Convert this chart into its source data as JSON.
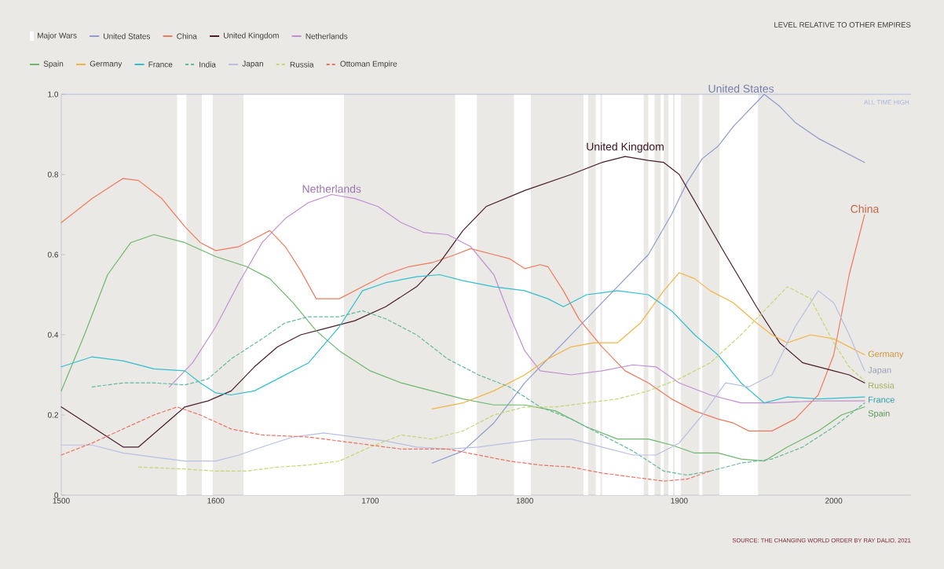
{
  "chart_data": {
    "type": "line",
    "xlim": [
      1500,
      2050
    ],
    "ylim": [
      0,
      1
    ],
    "xticks": [
      1500,
      1600,
      1700,
      1800,
      1900,
      2000
    ],
    "yticks": [
      {
        "value": 0,
        "label": "0"
      },
      0.2,
      0.4,
      0.6,
      0.8,
      {
        "value": 1,
        "label": "1.0"
      }
    ],
    "legend": "top left",
    "grid": false,
    "marker": "none",
    "bands": [
      {
        "axis": "x",
        "from": 1575,
        "to": 1581,
        "label": "Major Wars",
        "color": "#ffffff"
      },
      {
        "axis": "x",
        "from": 1591,
        "to": 1598,
        "color": "#ffffff"
      },
      {
        "axis": "x",
        "from": 1618,
        "to": 1683,
        "color": "#ffffff"
      },
      {
        "axis": "x",
        "from": 1755,
        "to": 1769,
        "color": "#ffffff"
      },
      {
        "axis": "x",
        "from": 1793,
        "to": 1804,
        "color": "#ffffff"
      },
      {
        "axis": "x",
        "from": 1838,
        "to": 1841,
        "color": "#ffffff"
      },
      {
        "axis": "x",
        "from": 1846,
        "to": 1849,
        "color": "#ffffff"
      },
      {
        "axis": "x",
        "from": 1850,
        "to": 1877,
        "color": "#ffffff"
      },
      {
        "axis": "x",
        "from": 1880,
        "to": 1884,
        "color": "#ffffff"
      },
      {
        "axis": "x",
        "from": 1888,
        "to": 1890,
        "color": "#ffffff"
      },
      {
        "axis": "x",
        "from": 1893,
        "to": 1896,
        "color": "#ffffff"
      },
      {
        "axis": "x",
        "from": 1897,
        "to": 1901,
        "color": "#ffffff"
      },
      {
        "axis": "x",
        "from": 1913,
        "to": 1915,
        "color": "#ffffff"
      },
      {
        "axis": "x",
        "from": 1926,
        "to": 1951,
        "color": "#ffffff"
      }
    ],
    "ref_lines": [
      {
        "axis": "y",
        "value": 1,
        "label": "ALL TIME HIGH",
        "color": "#aab3d8"
      }
    ],
    "series": [
      {
        "name": "United States",
        "color": "#8e9bcf",
        "x": [
          1740,
          1760,
          1780,
          1800,
          1820,
          1840,
          1860,
          1880,
          1895,
          1905,
          1915,
          1925,
          1935,
          1945,
          1955,
          1965,
          1975,
          1990,
          2005,
          2020
        ],
        "values": [
          0.08,
          0.11,
          0.18,
          0.28,
          0.36,
          0.44,
          0.52,
          0.6,
          0.7,
          0.78,
          0.84,
          0.87,
          0.92,
          0.96,
          1.0,
          0.97,
          0.93,
          0.89,
          0.86,
          0.83
        ]
      },
      {
        "name": "China",
        "color": "#ef7a5c",
        "x": [
          1500,
          1520,
          1540,
          1550,
          1565,
          1580,
          1590,
          1600,
          1615,
          1630,
          1635,
          1645,
          1655,
          1665,
          1680,
          1695,
          1710,
          1725,
          1740,
          1755,
          1765,
          1780,
          1790,
          1800,
          1810,
          1815,
          1825,
          1835,
          1850,
          1865,
          1880,
          1895,
          1910,
          1925,
          1935,
          1945,
          1960,
          1975,
          1990,
          2000,
          2010,
          2020
        ],
        "values": [
          0.68,
          0.74,
          0.79,
          0.785,
          0.74,
          0.67,
          0.63,
          0.61,
          0.62,
          0.65,
          0.66,
          0.62,
          0.56,
          0.49,
          0.49,
          0.52,
          0.55,
          0.57,
          0.58,
          0.6,
          0.615,
          0.6,
          0.59,
          0.565,
          0.575,
          0.57,
          0.51,
          0.44,
          0.37,
          0.31,
          0.28,
          0.24,
          0.21,
          0.19,
          0.18,
          0.16,
          0.16,
          0.19,
          0.25,
          0.35,
          0.55,
          0.7
        ]
      },
      {
        "name": "United Kingdom",
        "color": "#4a1c2c",
        "x": [
          1500,
          1520,
          1540,
          1550,
          1565,
          1580,
          1595,
          1610,
          1625,
          1640,
          1655,
          1670,
          1690,
          1710,
          1730,
          1745,
          1760,
          1775,
          1800,
          1830,
          1850,
          1865,
          1880,
          1890,
          1900,
          1915,
          1930,
          1950,
          1965,
          1980,
          2000,
          2010,
          2020
        ],
        "values": [
          0.22,
          0.17,
          0.12,
          0.12,
          0.17,
          0.22,
          0.235,
          0.26,
          0.32,
          0.37,
          0.4,
          0.415,
          0.435,
          0.47,
          0.52,
          0.58,
          0.66,
          0.72,
          0.76,
          0.8,
          0.83,
          0.845,
          0.835,
          0.83,
          0.8,
          0.7,
          0.6,
          0.47,
          0.38,
          0.33,
          0.31,
          0.3,
          0.28
        ]
      },
      {
        "name": "Netherlands",
        "color": "#c08fd2",
        "x": [
          1570,
          1585,
          1600,
          1615,
          1630,
          1645,
          1660,
          1675,
          1690,
          1705,
          1720,
          1735,
          1750,
          1765,
          1780,
          1790,
          1800,
          1810,
          1830,
          1850,
          1870,
          1885,
          1900,
          1920,
          1940,
          1960,
          1990,
          2020
        ],
        "values": [
          0.27,
          0.33,
          0.42,
          0.53,
          0.63,
          0.69,
          0.73,
          0.75,
          0.74,
          0.72,
          0.68,
          0.655,
          0.65,
          0.62,
          0.55,
          0.45,
          0.36,
          0.31,
          0.3,
          0.31,
          0.325,
          0.32,
          0.28,
          0.25,
          0.23,
          0.23,
          0.235,
          0.235
        ]
      },
      {
        "name": "Spain",
        "color": "#6cb86c",
        "x": [
          1500,
          1515,
          1530,
          1545,
          1560,
          1580,
          1600,
          1620,
          1635,
          1650,
          1665,
          1680,
          1700,
          1720,
          1740,
          1760,
          1780,
          1800,
          1820,
          1840,
          1860,
          1880,
          1895,
          1910,
          1925,
          1940,
          1955,
          1970,
          1990,
          2005,
          2020
        ],
        "values": [
          0.26,
          0.4,
          0.55,
          0.63,
          0.65,
          0.63,
          0.595,
          0.57,
          0.54,
          0.48,
          0.41,
          0.36,
          0.31,
          0.28,
          0.26,
          0.24,
          0.225,
          0.225,
          0.21,
          0.17,
          0.14,
          0.14,
          0.125,
          0.105,
          0.105,
          0.09,
          0.085,
          0.12,
          0.16,
          0.2,
          0.22
        ]
      },
      {
        "name": "Germany",
        "color": "#f3b443",
        "x": [
          1740,
          1760,
          1780,
          1800,
          1815,
          1830,
          1845,
          1860,
          1875,
          1890,
          1900,
          1910,
          1920,
          1935,
          1950,
          1960,
          1970,
          1985,
          2000,
          2020
        ],
        "values": [
          0.215,
          0.23,
          0.26,
          0.3,
          0.34,
          0.37,
          0.38,
          0.38,
          0.43,
          0.51,
          0.555,
          0.54,
          0.51,
          0.48,
          0.43,
          0.4,
          0.38,
          0.4,
          0.39,
          0.35
        ]
      },
      {
        "name": "France",
        "color": "#30bfd0",
        "x": [
          1500,
          1520,
          1540,
          1560,
          1580,
          1590,
          1600,
          1610,
          1625,
          1640,
          1660,
          1680,
          1695,
          1710,
          1730,
          1745,
          1760,
          1780,
          1800,
          1815,
          1825,
          1840,
          1860,
          1880,
          1895,
          1910,
          1925,
          1940,
          1955,
          1970,
          1990,
          2020
        ],
        "values": [
          0.32,
          0.345,
          0.335,
          0.315,
          0.31,
          0.28,
          0.255,
          0.25,
          0.26,
          0.29,
          0.33,
          0.42,
          0.51,
          0.53,
          0.545,
          0.55,
          0.535,
          0.52,
          0.51,
          0.49,
          0.47,
          0.5,
          0.51,
          0.5,
          0.46,
          0.4,
          0.35,
          0.28,
          0.23,
          0.245,
          0.24,
          0.245
        ]
      },
      {
        "name": "India",
        "color": "#62b8a2",
        "line_style": "dashed",
        "x": [
          1520,
          1540,
          1560,
          1580,
          1595,
          1610,
          1630,
          1645,
          1660,
          1680,
          1695,
          1710,
          1730,
          1750,
          1770,
          1790,
          1810,
          1830,
          1850,
          1870,
          1890,
          1905,
          1920,
          1940,
          1960,
          1980,
          2000,
          2020
        ],
        "values": [
          0.27,
          0.28,
          0.28,
          0.275,
          0.29,
          0.34,
          0.39,
          0.43,
          0.445,
          0.445,
          0.46,
          0.44,
          0.4,
          0.34,
          0.3,
          0.27,
          0.22,
          0.19,
          0.15,
          0.11,
          0.06,
          0.05,
          0.06,
          0.08,
          0.09,
          0.12,
          0.17,
          0.23
        ]
      },
      {
        "name": "Japan",
        "color": "#b8bfe2",
        "x": [
          1500,
          1520,
          1540,
          1560,
          1580,
          1600,
          1615,
          1630,
          1650,
          1670,
          1690,
          1710,
          1730,
          1750,
          1770,
          1790,
          1810,
          1830,
          1850,
          1870,
          1885,
          1900,
          1915,
          1930,
          1945,
          1960,
          1975,
          1990,
          2000,
          2010,
          2020
        ],
        "values": [
          0.125,
          0.125,
          0.105,
          0.095,
          0.085,
          0.085,
          0.1,
          0.12,
          0.145,
          0.155,
          0.145,
          0.135,
          0.12,
          0.115,
          0.12,
          0.13,
          0.14,
          0.14,
          0.12,
          0.1,
          0.1,
          0.13,
          0.2,
          0.28,
          0.27,
          0.3,
          0.42,
          0.51,
          0.48,
          0.4,
          0.31
        ]
      },
      {
        "name": "Russia",
        "color": "#c6d672",
        "line_style": "dashed",
        "x": [
          1550,
          1580,
          1600,
          1620,
          1640,
          1660,
          1680,
          1700,
          1720,
          1740,
          1760,
          1780,
          1800,
          1820,
          1840,
          1860,
          1880,
          1900,
          1920,
          1940,
          1955,
          1970,
          1985,
          2000,
          2010,
          2020
        ],
        "values": [
          0.07,
          0.065,
          0.06,
          0.06,
          0.07,
          0.075,
          0.085,
          0.12,
          0.15,
          0.14,
          0.16,
          0.2,
          0.22,
          0.22,
          0.23,
          0.24,
          0.26,
          0.29,
          0.33,
          0.4,
          0.46,
          0.52,
          0.49,
          0.38,
          0.32,
          0.285
        ]
      },
      {
        "name": "Ottoman Empire",
        "color": "#ef6f5e",
        "line_style": "dashed",
        "x": [
          1500,
          1520,
          1540,
          1560,
          1575,
          1590,
          1610,
          1630,
          1660,
          1690,
          1720,
          1750,
          1770,
          1790,
          1810,
          1830,
          1850,
          1870,
          1890,
          1905,
          1920
        ],
        "values": [
          0.1,
          0.13,
          0.165,
          0.2,
          0.22,
          0.2,
          0.165,
          0.15,
          0.145,
          0.13,
          0.115,
          0.115,
          0.1,
          0.085,
          0.075,
          0.07,
          0.055,
          0.045,
          0.035,
          0.04,
          0.06
        ]
      }
    ],
    "annotations": [
      {
        "text": "United States",
        "x": 1940,
        "y": 1.0
      },
      {
        "text": "China",
        "x": 2020,
        "y": 0.7
      },
      {
        "text": "United Kingdom",
        "x": 1865,
        "y": 0.85
      },
      {
        "text": "Netherlands",
        "x": 1675,
        "y": 0.75
      },
      {
        "text": "Germany",
        "x": 2020,
        "y": 0.35
      },
      {
        "text": "Japan",
        "x": 2020,
        "y": 0.31
      },
      {
        "text": "Russia",
        "x": 2020,
        "y": 0.285
      },
      {
        "text": "France",
        "x": 2020,
        "y": 0.245
      },
      {
        "text": "Spain",
        "x": 2020,
        "y": 0.22
      },
      "LEVEL RELATIVE TO OTHER EMPIRES",
      "SOURCE: THE CHANGING WORLD ORDER BY RAY DALIO, 2021"
    ]
  }
}
